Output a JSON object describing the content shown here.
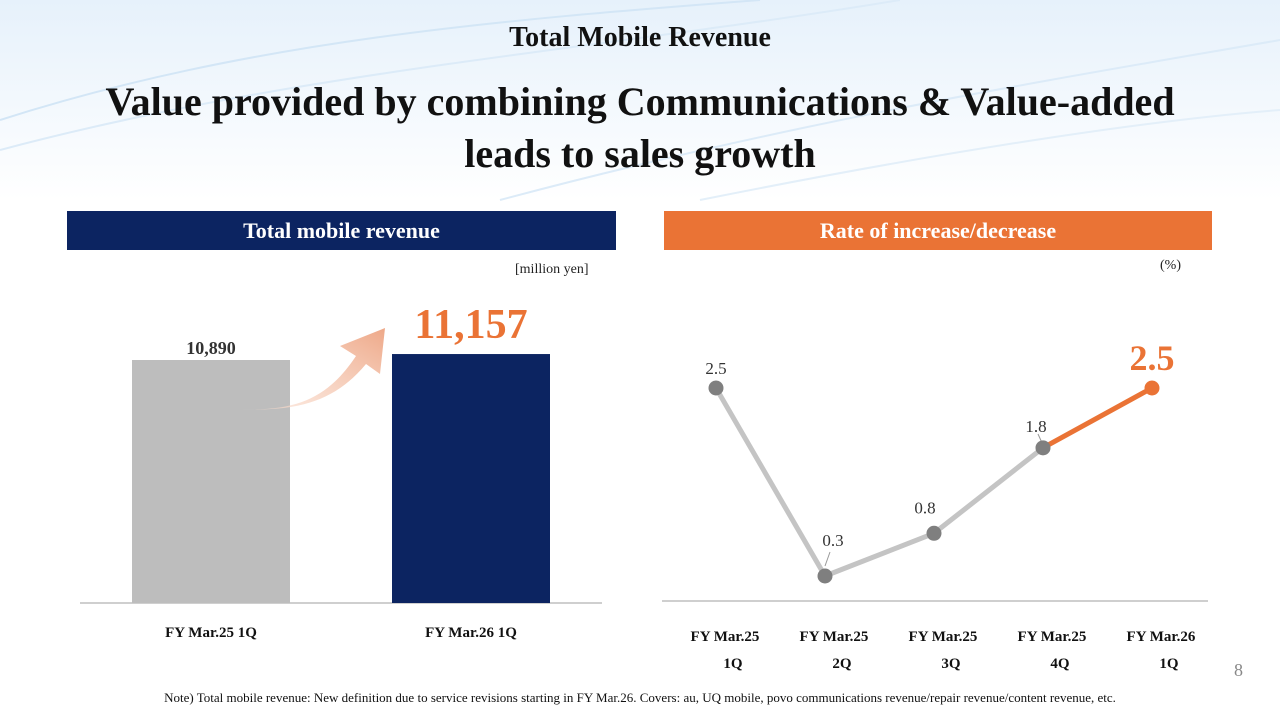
{
  "header": {
    "kicker": "Total Mobile Revenue",
    "title_line1": "Value provided by combining Communications & Value-added",
    "title_line2": "leads to sales growth"
  },
  "left_panel": {
    "header": "Total mobile revenue",
    "unit": "[million yen]"
  },
  "right_panel": {
    "header": "Rate of increase/decrease",
    "unit": "(%)"
  },
  "footnote": "Note) Total mobile revenue: New definition due to service revisions starting in FY Mar.26. Covers: au, UQ mobile, povo communications revenue/repair revenue/content revenue, etc.",
  "page_number": "8",
  "colors": {
    "navy": "#0c2461",
    "orange": "#ea7335",
    "gray_bar": "#bdbdbd",
    "gray_line": "#c4c4c4",
    "gray_marker": "#7f7f7f"
  },
  "chart_data": [
    {
      "type": "bar",
      "title": "Total mobile revenue",
      "unit": "[million yen]",
      "categories": [
        "FY Mar.25 1Q",
        "FY Mar.26 1Q"
      ],
      "values": [
        10890,
        11157
      ],
      "value_labels": [
        "10,890",
        "11,157"
      ],
      "ylim": [
        0,
        11500
      ]
    },
    {
      "type": "line",
      "title": "Rate of increase/decrease",
      "unit": "(%)",
      "categories": [
        [
          "FY Mar.25",
          "1Q"
        ],
        [
          "FY Mar.25",
          "2Q"
        ],
        [
          "FY Mar.25",
          "3Q"
        ],
        [
          "FY Mar.25",
          "4Q"
        ],
        [
          "FY Mar.26",
          "1Q"
        ]
      ],
      "values": [
        2.5,
        0.3,
        0.8,
        1.8,
        2.5
      ],
      "value_labels": [
        "2.5",
        "0.3",
        "0.8",
        "1.8",
        "2.5"
      ],
      "ylim": [
        0,
        2.7
      ]
    }
  ]
}
